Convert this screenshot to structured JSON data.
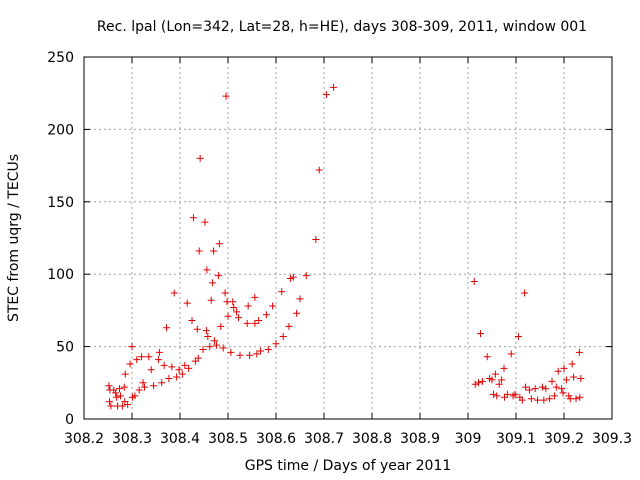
{
  "chart_data": {
    "type": "scatter",
    "title": "Rec. lpal (Lon=342, Lat=28, h=HE), days 308-309, 2011, window 001",
    "xlabel": "GPS time / Days of year 2011",
    "ylabel": "STEC from uqrg / TECUs",
    "xlim": [
      308.2,
      309.3
    ],
    "ylim": [
      0,
      250
    ],
    "xticks": [
      308.2,
      308.3,
      308.4,
      308.5,
      308.6,
      308.7,
      308.8,
      308.9,
      309,
      309.1,
      309.2,
      309.3
    ],
    "xtick_labels": [
      "308.2",
      "308.3",
      "308.4",
      "308.5",
      "308.6",
      "308.7",
      "308.8",
      "308.9",
      "309",
      "309.1",
      "309.2",
      "309.3"
    ],
    "yticks": [
      0,
      50,
      100,
      150,
      200,
      250
    ],
    "ytick_labels": [
      "0",
      "50",
      "100",
      "150",
      "200",
      "250"
    ],
    "grid": true,
    "marker": "+",
    "color": "#e00000",
    "points": [
      [
        308.252,
        23
      ],
      [
        308.254,
        20
      ],
      [
        308.253,
        12
      ],
      [
        308.256,
        9
      ],
      [
        308.262,
        20
      ],
      [
        308.266,
        18
      ],
      [
        308.268,
        15
      ],
      [
        308.27,
        9
      ],
      [
        308.274,
        21
      ],
      [
        308.276,
        16
      ],
      [
        308.28,
        9
      ],
      [
        308.284,
        22
      ],
      [
        308.285,
        12
      ],
      [
        308.286,
        31
      ],
      [
        308.291,
        10
      ],
      [
        308.296,
        38
      ],
      [
        308.3,
        50
      ],
      [
        308.301,
        15
      ],
      [
        308.306,
        16
      ],
      [
        308.31,
        41
      ],
      [
        308.315,
        20
      ],
      [
        308.32,
        43
      ],
      [
        308.323,
        25
      ],
      [
        308.326,
        22
      ],
      [
        308.335,
        43
      ],
      [
        308.34,
        34
      ],
      [
        308.345,
        23
      ],
      [
        308.355,
        41
      ],
      [
        308.357,
        46
      ],
      [
        308.362,
        25
      ],
      [
        308.367,
        37
      ],
      [
        308.372,
        63
      ],
      [
        308.377,
        28
      ],
      [
        308.383,
        36
      ],
      [
        308.388,
        87
      ],
      [
        308.393,
        29
      ],
      [
        308.398,
        34
      ],
      [
        308.405,
        31
      ],
      [
        308.41,
        37
      ],
      [
        308.415,
        80
      ],
      [
        308.418,
        35
      ],
      [
        308.425,
        68
      ],
      [
        308.428,
        139
      ],
      [
        308.432,
        40
      ],
      [
        308.436,
        62
      ],
      [
        308.438,
        42
      ],
      [
        308.44,
        116
      ],
      [
        308.442,
        180
      ],
      [
        308.448,
        48
      ],
      [
        308.452,
        136
      ],
      [
        308.455,
        61
      ],
      [
        308.456,
        103
      ],
      [
        308.458,
        57
      ],
      [
        308.462,
        50
      ],
      [
        308.465,
        82
      ],
      [
        308.468,
        94
      ],
      [
        308.47,
        116
      ],
      [
        308.472,
        54
      ],
      [
        308.476,
        51
      ],
      [
        308.48,
        99
      ],
      [
        308.482,
        121
      ],
      [
        308.485,
        64
      ],
      [
        308.49,
        49
      ],
      [
        308.494,
        87
      ],
      [
        308.496,
        223
      ],
      [
        308.498,
        81
      ],
      [
        308.5,
        71
      ],
      [
        308.506,
        46
      ],
      [
        308.51,
        81
      ],
      [
        308.512,
        77
      ],
      [
        308.518,
        74
      ],
      [
        308.522,
        70
      ],
      [
        308.525,
        44
      ],
      [
        308.54,
        66
      ],
      [
        308.542,
        78
      ],
      [
        308.545,
        44
      ],
      [
        308.556,
        84
      ],
      [
        308.556,
        66
      ],
      [
        308.56,
        45
      ],
      [
        308.564,
        68
      ],
      [
        308.568,
        47
      ],
      [
        308.58,
        72
      ],
      [
        308.584,
        48
      ],
      [
        308.593,
        78
      ],
      [
        308.6,
        52
      ],
      [
        308.612,
        88
      ],
      [
        308.615,
        57
      ],
      [
        308.627,
        64
      ],
      [
        308.63,
        97
      ],
      [
        308.636,
        98
      ],
      [
        308.643,
        73
      ],
      [
        308.65,
        83
      ],
      [
        308.663,
        99
      ],
      [
        308.683,
        124
      ],
      [
        308.69,
        172
      ],
      [
        308.705,
        224
      ],
      [
        308.72,
        229
      ],
      [
        309.013,
        95
      ],
      [
        309.015,
        24
      ],
      [
        309.022,
        25
      ],
      [
        309.026,
        59
      ],
      [
        309.03,
        26
      ],
      [
        309.04,
        43
      ],
      [
        309.045,
        28
      ],
      [
        309.05,
        27
      ],
      [
        309.053,
        17
      ],
      [
        309.057,
        31
      ],
      [
        309.06,
        16
      ],
      [
        309.065,
        24
      ],
      [
        309.07,
        27
      ],
      [
        309.075,
        35
      ],
      [
        309.076,
        15
      ],
      [
        309.082,
        17
      ],
      [
        309.09,
        45
      ],
      [
        309.094,
        16
      ],
      [
        309.098,
        17
      ],
      [
        309.105,
        57
      ],
      [
        309.108,
        15
      ],
      [
        309.113,
        13
      ],
      [
        309.118,
        87
      ],
      [
        309.12,
        22
      ],
      [
        309.128,
        20
      ],
      [
        309.132,
        14
      ],
      [
        309.14,
        21
      ],
      [
        309.145,
        13
      ],
      [
        309.155,
        22
      ],
      [
        309.158,
        13
      ],
      [
        309.162,
        21
      ],
      [
        309.17,
        14
      ],
      [
        309.175,
        26
      ],
      [
        309.18,
        16
      ],
      [
        309.184,
        22
      ],
      [
        309.188,
        33
      ],
      [
        309.195,
        21
      ],
      [
        309.198,
        18
      ],
      [
        309.2,
        35
      ],
      [
        309.205,
        27
      ],
      [
        309.21,
        16
      ],
      [
        309.213,
        14
      ],
      [
        309.217,
        38
      ],
      [
        309.22,
        29
      ],
      [
        309.225,
        14
      ],
      [
        309.232,
        46
      ],
      [
        309.233,
        15
      ],
      [
        309.235,
        28
      ]
    ]
  }
}
